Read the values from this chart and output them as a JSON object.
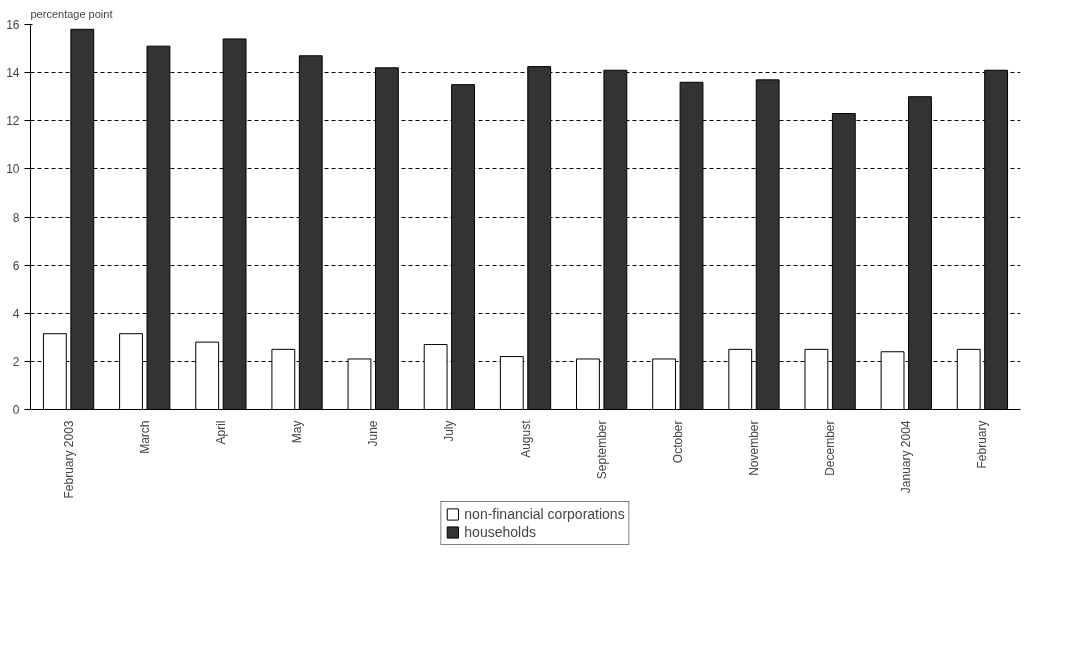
{
  "chart_data": {
    "type": "bar",
    "ylabel": "percentage point",
    "categories": [
      "February 2003",
      "March",
      "April",
      "May",
      "June",
      "July",
      "August",
      "September",
      "October",
      "November",
      "December",
      "January 2004",
      "February"
    ],
    "series": [
      {
        "name": "non-financial corporations",
        "color": "#ffffff",
        "values": [
          3.15,
          3.15,
          2.8,
          2.5,
          2.1,
          2.7,
          2.2,
          2.1,
          2.1,
          2.5,
          2.5,
          2.4,
          2.5
        ]
      },
      {
        "name": "households",
        "color": "#333333",
        "values": [
          15.8,
          15.1,
          15.4,
          14.7,
          14.2,
          13.5,
          14.25,
          14.1,
          13.6,
          13.7,
          12.3,
          13.0,
          14.1
        ]
      }
    ],
    "ylim": [
      0,
      16
    ],
    "yticks": [
      0,
      2,
      4,
      6,
      8,
      10,
      12,
      14,
      16
    ],
    "grid": "y",
    "legend": "bottom"
  }
}
